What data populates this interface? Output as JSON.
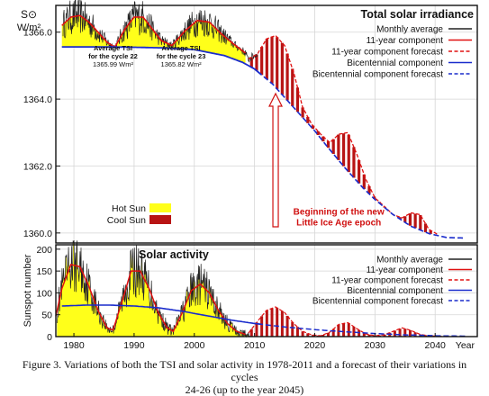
{
  "colors": {
    "hot_sun": "#ffff1a",
    "cool_sun": "#b81414",
    "monthly": "#222222",
    "component_11yr": "#e01010",
    "bicentennial": "#1a2ccc",
    "frame": "#111111",
    "annotation": "#d01010"
  },
  "chart_data": [
    {
      "type": "line",
      "title": "Total solar irradiance",
      "ylabel": "S⊙, W/m²",
      "xlim": [
        1977,
        2047
      ],
      "ylim": [
        1359.7,
        1366.8
      ],
      "yticks": [
        1360.0,
        1362.0,
        1364.0,
        1366.0
      ],
      "ytick_labels": [
        "1360.0",
        "1362.0",
        "1364.0",
        "1366.0"
      ],
      "grid": true,
      "legend_position": "top-right",
      "legend": [
        {
          "label": "Monthly average",
          "color": "#222222",
          "style": "solid"
        },
        {
          "label": "11-year component",
          "color": "#e01010",
          "style": "solid"
        },
        {
          "label": "11-year component forecast",
          "color": "#e01010",
          "style": "dashed"
        },
        {
          "label": "Bicentennial component",
          "color": "#1a2ccc",
          "style": "solid"
        },
        {
          "label": "Bicentennial component forecast",
          "color": "#1a2ccc",
          "style": "dashed"
        }
      ],
      "fill_legend": [
        {
          "label": "Hot Sun",
          "color": "#ffff1a"
        },
        {
          "label": "Cool Sun",
          "color": "#b81414"
        }
      ],
      "annotations": [
        {
          "lines": [
            "Average TSI",
            "for the cycle 22",
            "1365.99 Wm²"
          ],
          "x": 1986.5,
          "y": 1365.45
        },
        {
          "lines": [
            "Average TSI",
            "for the cycle 23",
            "1365.82 Wm²"
          ],
          "x": 1997.8,
          "y": 1365.45
        },
        {
          "lines": [
            "Beginning of the new",
            "Little Ice Age epoch"
          ],
          "x": 2024,
          "y": 1360.55
        }
      ],
      "series": [
        {
          "name": "Bicentennial component",
          "x": [
            1978,
            1985,
            1990,
            1995,
            2000,
            2005,
            2008,
            2010,
            2013,
            2015,
            2018,
            2020,
            2022,
            2025,
            2028,
            2030,
            2033,
            2036,
            2039,
            2042,
            2045
          ],
          "y": [
            1365.56,
            1365.56,
            1365.55,
            1365.53,
            1365.48,
            1365.3,
            1365.1,
            1364.9,
            1364.45,
            1364.05,
            1363.45,
            1363.05,
            1362.6,
            1361.95,
            1361.35,
            1361.0,
            1360.55,
            1360.2,
            1359.98,
            1359.86,
            1359.85
          ]
        },
        {
          "name": "11-year component",
          "x": [
            1978,
            1979.5,
            1981,
            1982.5,
            1984,
            1985.5,
            1986.8,
            1988.5,
            1990,
            1991.5,
            1993,
            1994.5,
            1996.3,
            1998.5,
            2000.5,
            2002.5,
            2004.5,
            2006.5,
            2008.7
          ],
          "y": [
            1366.2,
            1366.45,
            1366.5,
            1366.3,
            1366.0,
            1365.7,
            1365.55,
            1366.1,
            1366.45,
            1366.45,
            1366.1,
            1365.75,
            1365.6,
            1366.05,
            1366.35,
            1366.3,
            1365.95,
            1365.65,
            1365.35
          ]
        },
        {
          "name": "11-year component forecast",
          "x": [
            2009,
            2010.5,
            2012,
            2013.5,
            2015,
            2016.5,
            2018,
            2019.5,
            2021,
            2022.5,
            2024,
            2025.5,
            2027,
            2028.5,
            2030,
            2031.5,
            2033,
            2034.5,
            2036,
            2037.5,
            2039,
            2040.5
          ],
          "y": [
            1365.2,
            1365.35,
            1365.8,
            1365.9,
            1365.6,
            1364.8,
            1363.75,
            1363.25,
            1362.95,
            1362.7,
            1362.95,
            1363.0,
            1362.35,
            1361.6,
            1361.05,
            1360.8,
            1360.55,
            1360.45,
            1360.6,
            1360.55,
            1360.1,
            1359.95
          ]
        }
      ]
    },
    {
      "type": "line",
      "title": "Solar activity",
      "ylabel": "Sunspot number",
      "xlabel": "Year",
      "xlim": [
        1977,
        2047
      ],
      "ylim": [
        0,
        210
      ],
      "xticks": [
        1980,
        1990,
        2000,
        2010,
        2020,
        2030,
        2040
      ],
      "xtick_labels": [
        "1980",
        "1990",
        "2000",
        "2010",
        "2020",
        "2030",
        "2040"
      ],
      "yticks": [
        0,
        50,
        100,
        150,
        200
      ],
      "ytick_labels": [
        "0",
        "50",
        "100",
        "150",
        "200"
      ],
      "grid": true,
      "legend_position": "top-right",
      "legend": [
        {
          "label": "Monthly average",
          "color": "#222222",
          "style": "solid"
        },
        {
          "label": "11-year component",
          "color": "#e01010",
          "style": "solid"
        },
        {
          "label": "11-year component forecast",
          "color": "#e01010",
          "style": "dashed"
        },
        {
          "label": "Bicentennial component",
          "color": "#1a2ccc",
          "style": "solid"
        },
        {
          "label": "Bicentennial component forecast",
          "color": "#1a2ccc",
          "style": "dashed"
        }
      ],
      "series": [
        {
          "name": "Bicentennial component",
          "x": [
            1978,
            1982,
            1986,
            1990,
            1994,
            1998,
            2002,
            2006,
            2010,
            2015,
            2020,
            2025,
            2030,
            2035,
            2040,
            2045
          ],
          "y": [
            70,
            72,
            72,
            70,
            66,
            58,
            48,
            38,
            30,
            22,
            16,
            11,
            7,
            4,
            2,
            1
          ]
        },
        {
          "name": "11-year component",
          "x": [
            1976.5,
            1978,
            1979.5,
            1981,
            1982.5,
            1984,
            1985.5,
            1986.5,
            1988,
            1989.5,
            1991,
            1992.5,
            1994,
            1995.5,
            1996.5,
            1998,
            1999.5,
            2001,
            2002.5,
            2004,
            2005.5,
            2007,
            2008.5
          ],
          "y": [
            15,
            110,
            165,
            160,
            115,
            60,
            20,
            15,
            80,
            150,
            150,
            110,
            55,
            20,
            12,
            55,
            105,
            120,
            100,
            60,
            30,
            12,
            5
          ]
        },
        {
          "name": "11-year component forecast",
          "x": [
            2009,
            2010.5,
            2012,
            2013.5,
            2015,
            2016.5,
            2018,
            2019.5,
            2021,
            2022.5,
            2024,
            2025.5,
            2027,
            2028.5,
            2030,
            2031.5,
            2033,
            2034.5,
            2036,
            2037.5,
            2039,
            2040.5,
            2042
          ],
          "y": [
            8,
            35,
            60,
            68,
            55,
            30,
            12,
            4,
            2,
            10,
            28,
            32,
            18,
            6,
            2,
            4,
            12,
            20,
            14,
            5,
            2,
            1,
            0
          ]
        }
      ]
    }
  ],
  "caption": {
    "line1": "Figure 3. Variations of both the TSI and solar activity in 1978-2011 and a forecast of their variations in cycles",
    "line2": "24-26 (up to the year 2045)"
  }
}
